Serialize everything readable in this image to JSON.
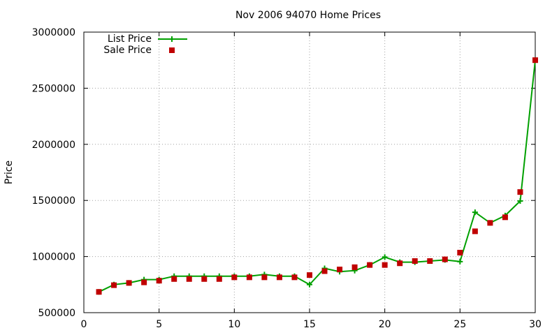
{
  "chart_data": {
    "type": "line",
    "title": "Nov 2006 94070 Home Prices",
    "xlabel": "",
    "ylabel": "Price",
    "xlim": [
      0,
      30
    ],
    "ylim": [
      500000,
      3000000
    ],
    "x_ticks": [
      0,
      5,
      10,
      15,
      20,
      25,
      30
    ],
    "y_ticks": [
      500000,
      1000000,
      1500000,
      2000000,
      2500000,
      3000000
    ],
    "x_tick_labels": [
      "0",
      "5",
      "10",
      "15",
      "20",
      "25",
      "30"
    ],
    "y_tick_labels": [
      "500000",
      "1000000",
      "1500000",
      "2000000",
      "2500000",
      "3000000"
    ],
    "grid": true,
    "legend_position": "top-left",
    "x": [
      1,
      2,
      3,
      4,
      5,
      6,
      7,
      8,
      9,
      10,
      11,
      12,
      13,
      14,
      15,
      16,
      17,
      18,
      19,
      20,
      21,
      22,
      23,
      24,
      25,
      26,
      27,
      28,
      29,
      30
    ],
    "series": [
      {
        "name": "List Price",
        "style": "line-plus",
        "color": "#00a000",
        "values": [
          685000,
          750000,
          765000,
          795000,
          795000,
          825000,
          825000,
          825000,
          825000,
          825000,
          825000,
          840000,
          825000,
          825000,
          750000,
          895000,
          865000,
          875000,
          925000,
          995000,
          950000,
          950000,
          960000,
          970000,
          955000,
          1395000,
          1300000,
          1365000,
          1495000,
          2750000
        ]
      },
      {
        "name": "Sale Price",
        "style": "square",
        "color": "#c00000",
        "values": [
          685000,
          745000,
          765000,
          770000,
          785000,
          800000,
          800000,
          800000,
          800000,
          815000,
          815000,
          815000,
          815000,
          815000,
          835000,
          870000,
          885000,
          905000,
          925000,
          925000,
          940000,
          960000,
          960000,
          975000,
          1035000,
          1225000,
          1300000,
          1350000,
          1575000,
          2750000
        ]
      }
    ]
  }
}
